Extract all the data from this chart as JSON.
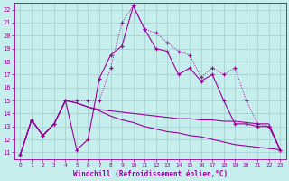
{
  "xlabel": "Windchill (Refroidissement éolien,°C)",
  "background_color": "#c6eeec",
  "grid_color": "#a0cccc",
  "line_color": "#990099",
  "hours": [
    0,
    1,
    2,
    3,
    4,
    5,
    6,
    7,
    8,
    9,
    10,
    11,
    12,
    13,
    14,
    15,
    16,
    17,
    18,
    19,
    20,
    21,
    22,
    23
  ],
  "series_solid_marker": [
    10.8,
    13.5,
    12.3,
    13.2,
    15.0,
    11.2,
    12.0,
    16.7,
    18.5,
    19.2,
    22.3,
    20.5,
    19.0,
    18.8,
    17.0,
    17.5,
    16.5,
    17.0,
    15.0,
    13.2,
    13.2,
    13.0,
    13.0,
    11.2
  ],
  "series_dot_marker": [
    10.8,
    13.5,
    12.3,
    13.2,
    15.0,
    15.0,
    15.0,
    15.0,
    17.5,
    21.0,
    22.3,
    20.5,
    20.2,
    19.5,
    18.8,
    18.5,
    16.8,
    17.5,
    17.0,
    17.5,
    15.0,
    13.2,
    13.0,
    11.2
  ],
  "series_flat": [
    10.8,
    13.5,
    12.3,
    13.2,
    15.0,
    14.8,
    14.5,
    14.3,
    14.2,
    14.1,
    14.0,
    13.9,
    13.8,
    13.7,
    13.6,
    13.6,
    13.5,
    13.5,
    13.4,
    13.4,
    13.3,
    13.2,
    13.2,
    11.2
  ],
  "series_decline": [
    10.8,
    13.5,
    12.3,
    13.2,
    15.0,
    14.8,
    14.5,
    14.2,
    13.8,
    13.5,
    13.3,
    13.0,
    12.8,
    12.6,
    12.5,
    12.3,
    12.2,
    12.0,
    11.8,
    11.6,
    11.5,
    11.4,
    11.3,
    11.2
  ],
  "ylim": [
    10.5,
    22.5
  ],
  "xlim": [
    -0.5,
    23.5
  ],
  "yticks": [
    11,
    12,
    13,
    14,
    15,
    16,
    17,
    18,
    19,
    20,
    21,
    22
  ],
  "xticks": [
    0,
    1,
    2,
    3,
    4,
    5,
    6,
    7,
    8,
    9,
    10,
    11,
    12,
    13,
    14,
    15,
    16,
    17,
    18,
    19,
    20,
    21,
    22,
    23
  ]
}
